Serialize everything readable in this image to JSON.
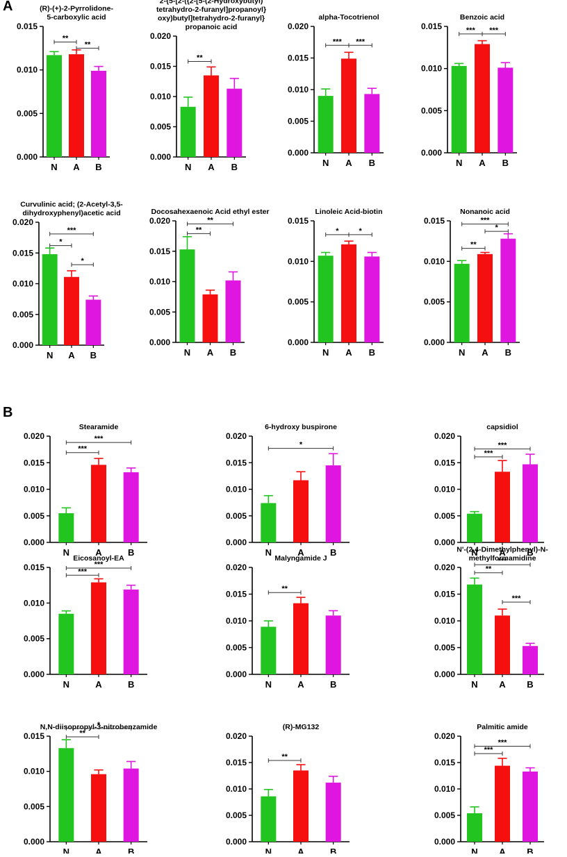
{
  "figure": {
    "panel_a_label": "A",
    "panel_b_label": "B"
  },
  "colors": {
    "N": "#22c41f",
    "A": "#f50f0f",
    "B": "#df16df",
    "axis": "#000000"
  },
  "chart_data": [
    {
      "type": "bar",
      "panel": "A",
      "title": [
        "(R)-(+)-2-Pyrrolidone-",
        "5-carboxylic acid"
      ],
      "categories": [
        "N",
        "A",
        "B"
      ],
      "values": [
        0.0117,
        0.0118,
        0.0099
      ],
      "errors": [
        0.0004,
        0.0005,
        0.0005
      ],
      "ylim": [
        0,
        0.015
      ],
      "yticks": [
        "0.000",
        "0.005",
        "0.010",
        "0.015"
      ],
      "significance": [
        {
          "from": "N",
          "to": "A",
          "label": "**",
          "level": 0.0132
        },
        {
          "from": "A",
          "to": "B",
          "label": "**",
          "level": 0.0125
        }
      ]
    },
    {
      "type": "bar",
      "panel": "A",
      "title": [
        "2-{5-[2-({2-[5-(2-Hydroxybutyl)",
        "tetrahydro-2-furanyl]propanoyl}",
        "oxy)butyl]tetrahydro-2-furanyl}",
        "propanoic acid"
      ],
      "categories": [
        "N",
        "A",
        "B"
      ],
      "values": [
        0.0083,
        0.0135,
        0.0113
      ],
      "errors": [
        0.0016,
        0.0014,
        0.0017
      ],
      "ylim": [
        0,
        0.02
      ],
      "yticks": [
        "0.000",
        "0.005",
        "0.010",
        "0.015",
        "0.020"
      ],
      "significance": [
        {
          "from": "N",
          "to": "A",
          "label": "**",
          "level": 0.0158
        }
      ]
    },
    {
      "type": "bar",
      "panel": "A",
      "title": [
        "alpha-Tocotrienol"
      ],
      "categories": [
        "N",
        "A",
        "B"
      ],
      "values": [
        0.009,
        0.0149,
        0.0093
      ],
      "errors": [
        0.0011,
        0.001,
        0.0009
      ],
      "ylim": [
        0,
        0.02
      ],
      "yticks": [
        "0.000",
        "0.005",
        "0.010",
        "0.015",
        "0.020"
      ],
      "significance": [
        {
          "from": "N",
          "to": "A",
          "label": "***",
          "level": 0.017
        },
        {
          "from": "A",
          "to": "B",
          "label": "***",
          "level": 0.017
        }
      ]
    },
    {
      "type": "bar",
      "panel": "A",
      "title": [
        "Benzoic acid"
      ],
      "categories": [
        "N",
        "A",
        "B"
      ],
      "values": [
        0.0103,
        0.0129,
        0.0101
      ],
      "errors": [
        0.0003,
        0.0004,
        0.0006
      ],
      "ylim": [
        0,
        0.015
      ],
      "yticks": [
        "0.000",
        "0.005",
        "0.010",
        "0.015"
      ],
      "significance": [
        {
          "from": "N",
          "to": "A",
          "label": "***",
          "level": 0.0141
        },
        {
          "from": "A",
          "to": "B",
          "label": "***",
          "level": 0.0141
        }
      ]
    },
    {
      "type": "bar",
      "panel": "A",
      "title": [
        "Curvulinic acid; (2-Acetyl-3,5-",
        "dihydroxyphenyl)acetic acid"
      ],
      "categories": [
        "N",
        "A",
        "B"
      ],
      "values": [
        0.0148,
        0.0111,
        0.0074
      ],
      "errors": [
        0.001,
        0.001,
        0.0006
      ],
      "ylim": [
        0,
        0.02
      ],
      "yticks": [
        "0.000",
        "0.005",
        "0.010",
        "0.015",
        "0.020"
      ],
      "significance": [
        {
          "from": "N",
          "to": "B",
          "label": "***",
          "level": 0.0181
        },
        {
          "from": "N",
          "to": "A",
          "label": "*",
          "level": 0.0162
        },
        {
          "from": "A",
          "to": "B",
          "label": "*",
          "level": 0.0131
        }
      ]
    },
    {
      "type": "bar",
      "panel": "A",
      "title": [
        "Docosahexaenoic Acid ethyl ester"
      ],
      "categories": [
        "N",
        "A",
        "B"
      ],
      "values": [
        0.0153,
        0.0079,
        0.0102
      ],
      "errors": [
        0.0021,
        0.0007,
        0.0014
      ],
      "ylim": [
        0,
        0.02
      ],
      "yticks": [
        "0.000",
        "0.005",
        "0.010",
        "0.015",
        "0.020"
      ],
      "significance": [
        {
          "from": "N",
          "to": "B",
          "label": "**",
          "level": 0.0195
        },
        {
          "from": "N",
          "to": "A",
          "label": "**",
          "level": 0.0179
        }
      ]
    },
    {
      "type": "bar",
      "panel": "A",
      "title": [
        "Linoleic Acid-biotin"
      ],
      "categories": [
        "N",
        "A",
        "B"
      ],
      "values": [
        0.0107,
        0.0121,
        0.0106
      ],
      "errors": [
        0.0004,
        0.0004,
        0.0005
      ],
      "ylim": [
        0,
        0.015
      ],
      "yticks": [
        "0.000",
        "0.005",
        "0.010",
        "0.015"
      ],
      "significance": [
        {
          "from": "N",
          "to": "A",
          "label": "*",
          "level": 0.0133
        },
        {
          "from": "A",
          "to": "B",
          "label": "*",
          "level": 0.0133
        }
      ]
    },
    {
      "type": "bar",
      "panel": "A",
      "title": [
        "Nonanoic acid"
      ],
      "categories": [
        "N",
        "A",
        "B"
      ],
      "values": [
        0.0097,
        0.0109,
        0.0128
      ],
      "errors": [
        0.0004,
        0.0002,
        0.0006
      ],
      "ylim": [
        0,
        0.015
      ],
      "yticks": [
        "0.000",
        "0.005",
        "0.010",
        "0.015"
      ],
      "significance": [
        {
          "from": "N",
          "to": "B",
          "label": "***",
          "level": 0.0146
        },
        {
          "from": "A",
          "to": "B",
          "label": "*",
          "level": 0.0137
        },
        {
          "from": "N",
          "to": "A",
          "label": "**",
          "level": 0.0116
        }
      ]
    },
    {
      "type": "bar",
      "panel": "B",
      "title": [
        "Stearamide"
      ],
      "categories": [
        "N",
        "A",
        "B"
      ],
      "values": [
        0.0055,
        0.0146,
        0.0132
      ],
      "errors": [
        0.001,
        0.0012,
        0.0008
      ],
      "ylim": [
        0,
        0.02
      ],
      "yticks": [
        "0.000",
        "0.005",
        "0.010",
        "0.015",
        "0.020"
      ],
      "significance": [
        {
          "from": "N",
          "to": "B",
          "label": "***",
          "level": 0.0188
        },
        {
          "from": "N",
          "to": "A",
          "label": "***",
          "level": 0.0169
        }
      ]
    },
    {
      "type": "bar",
      "panel": "B",
      "title": [
        "6-hydroxy buspirone"
      ],
      "categories": [
        "N",
        "A",
        "B"
      ],
      "values": [
        0.0074,
        0.0117,
        0.0145
      ],
      "errors": [
        0.0014,
        0.0016,
        0.0022
      ],
      "ylim": [
        0,
        0.02
      ],
      "yticks": [
        "0.000",
        "0.005",
        "0.010",
        "0.015",
        "0.020"
      ],
      "significance": [
        {
          "from": "N",
          "to": "B",
          "label": "*",
          "level": 0.0177
        }
      ]
    },
    {
      "type": "bar",
      "panel": "B",
      "title": [
        "capsidiol"
      ],
      "categories": [
        "N",
        "A",
        "B"
      ],
      "values": [
        0.0054,
        0.0133,
        0.0147
      ],
      "errors": [
        0.0004,
        0.0021,
        0.0019
      ],
      "ylim": [
        0,
        0.02
      ],
      "yticks": [
        "0.000",
        "0.005",
        "0.010",
        "0.015",
        "0.020"
      ],
      "significance": [
        {
          "from": "N",
          "to": "B",
          "label": "***",
          "level": 0.0176
        },
        {
          "from": "N",
          "to": "A",
          "label": "***",
          "level": 0.0161
        }
      ]
    },
    {
      "type": "bar",
      "panel": "B",
      "title": [
        "Eicosanoyl-EA"
      ],
      "categories": [
        "N",
        "A",
        "B"
      ],
      "values": [
        0.0085,
        0.0129,
        0.0119
      ],
      "errors": [
        0.0004,
        0.0005,
        0.0006
      ],
      "ylim": [
        0,
        0.015
      ],
      "yticks": [
        "0.000",
        "0.005",
        "0.010",
        "0.015"
      ],
      "significance": [
        {
          "from": "N",
          "to": "B",
          "label": "***",
          "level": 0.0149
        },
        {
          "from": "N",
          "to": "A",
          "label": "***",
          "level": 0.0139
        }
      ]
    },
    {
      "type": "bar",
      "panel": "B",
      "title": [
        "Malyngamide J"
      ],
      "categories": [
        "N",
        "A",
        "B"
      ],
      "values": [
        0.0089,
        0.0133,
        0.011
      ],
      "errors": [
        0.0011,
        0.0011,
        0.0009
      ],
      "ylim": [
        0,
        0.02
      ],
      "yticks": [
        "0.000",
        "0.005",
        "0.010",
        "0.015",
        "0.020"
      ],
      "significance": [
        {
          "from": "N",
          "to": "A",
          "label": "**",
          "level": 0.0153
        }
      ]
    },
    {
      "type": "bar",
      "panel": "B",
      "title": [
        "N'-(2,4-Dimethylphenyl)-N-",
        "methylformamidine"
      ],
      "categories": [
        "N",
        "A",
        "B"
      ],
      "values": [
        0.0168,
        0.011,
        0.0053
      ],
      "errors": [
        0.0012,
        0.0012,
        0.0005
      ],
      "ylim": [
        0,
        0.02
      ],
      "yticks": [
        "0.000",
        "0.005",
        "0.010",
        "0.015",
        "0.020"
      ],
      "significance": [
        {
          "from": "N",
          "to": "B",
          "label": "***",
          "level": 0.0205
        },
        {
          "from": "N",
          "to": "A",
          "label": "**",
          "level": 0.019
        },
        {
          "from": "A",
          "to": "B",
          "label": "***",
          "level": 0.0135
        }
      ]
    },
    {
      "type": "bar",
      "panel": "B",
      "title": [
        "N,N-diisopropyl-3-nitrobenzamide"
      ],
      "categories": [
        "N",
        "A",
        "B"
      ],
      "values": [
        0.0133,
        0.0096,
        0.0104
      ],
      "errors": [
        0.0012,
        0.0006,
        0.001
      ],
      "ylim": [
        0,
        0.015
      ],
      "yticks": [
        "0.000",
        "0.005",
        "0.010",
        "0.015"
      ],
      "significance": [
        {
          "from": "N",
          "to": "B",
          "label": "*",
          "level": 0.0161
        },
        {
          "from": "N",
          "to": "A",
          "label": "**",
          "level": 0.0149
        }
      ]
    },
    {
      "type": "bar",
      "panel": "B",
      "title": [
        "(R)-MG132"
      ],
      "categories": [
        "N",
        "A",
        "B"
      ],
      "values": [
        0.0086,
        0.0135,
        0.0112
      ],
      "errors": [
        0.0013,
        0.0011,
        0.0012
      ],
      "ylim": [
        0,
        0.02
      ],
      "yticks": [
        "0.000",
        "0.005",
        "0.010",
        "0.015",
        "0.020"
      ],
      "significance": [
        {
          "from": "N",
          "to": "A",
          "label": "**",
          "level": 0.0154
        }
      ]
    },
    {
      "type": "bar",
      "panel": "B",
      "title": [
        "Palmitic amide"
      ],
      "categories": [
        "N",
        "A",
        "B"
      ],
      "values": [
        0.0054,
        0.0144,
        0.0133
      ],
      "errors": [
        0.0012,
        0.0014,
        0.0007
      ],
      "ylim": [
        0,
        0.02
      ],
      "yticks": [
        "0.000",
        "0.005",
        "0.010",
        "0.015",
        "0.020"
      ],
      "significance": [
        {
          "from": "N",
          "to": "B",
          "label": "***",
          "level": 0.0181
        },
        {
          "from": "N",
          "to": "A",
          "label": "***",
          "level": 0.0167
        }
      ]
    }
  ]
}
